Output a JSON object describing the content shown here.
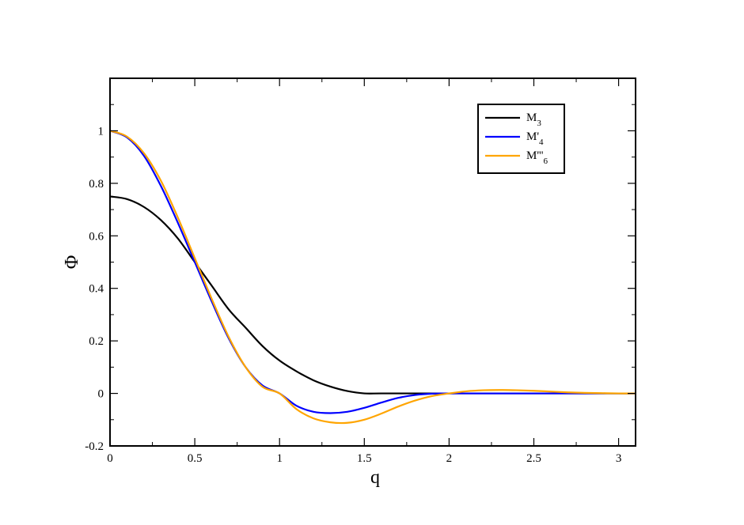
{
  "chart_data": {
    "type": "line",
    "xlabel": "q",
    "ylabel": "Φ",
    "xlim": [
      0,
      3.1
    ],
    "ylim": [
      -0.2,
      1.2
    ],
    "xticks": [
      0,
      0.5,
      1,
      1.5,
      2,
      2.5,
      3
    ],
    "xtick_labels": [
      "0",
      "0.5",
      "1",
      "1.5",
      "2",
      "2.5",
      "3"
    ],
    "yticks": [
      -0.2,
      0,
      0.2,
      0.4,
      0.6,
      0.8,
      1
    ],
    "ytick_labels": [
      "-0.2",
      "0",
      "0.2",
      "0.4",
      "0.6",
      "0.8",
      "1"
    ],
    "grid": false,
    "legend_position": "top-right",
    "series": [
      {
        "name": "M3",
        "label_main": "M",
        "label_sub": "3",
        "color": "#000000",
        "x": [
          0,
          0.1,
          0.2,
          0.3,
          0.4,
          0.5,
          0.6,
          0.7,
          0.8,
          0.9,
          1.0,
          1.1,
          1.2,
          1.3,
          1.4,
          1.5,
          1.6,
          1.8,
          2.0,
          2.2,
          2.4,
          2.6,
          2.8,
          3.0,
          3.1
        ],
        "y": [
          0.75,
          0.74,
          0.71,
          0.66,
          0.59,
          0.5,
          0.41,
          0.32,
          0.25,
          0.18,
          0.125,
          0.084,
          0.05,
          0.026,
          0.009,
          0,
          0,
          0,
          0,
          0,
          0,
          0,
          0,
          0,
          0
        ]
      },
      {
        "name": "M'4",
        "label_main": "M'",
        "label_sub": "4",
        "color": "#0000ff",
        "x": [
          0,
          0.1,
          0.2,
          0.3,
          0.4,
          0.5,
          0.6,
          0.7,
          0.8,
          0.9,
          1.0,
          1.1,
          1.2,
          1.3,
          1.4,
          1.5,
          1.6,
          1.7,
          1.8,
          1.9,
          2.0,
          2.2,
          2.4,
          2.6,
          2.8,
          3.0,
          3.1
        ],
        "y": [
          1.0,
          0.975,
          0.905,
          0.79,
          0.65,
          0.5,
          0.35,
          0.21,
          0.1,
          0.03,
          0,
          -0.047,
          -0.07,
          -0.075,
          -0.07,
          -0.055,
          -0.035,
          -0.017,
          -0.006,
          -0.001,
          0,
          0,
          0,
          0,
          0,
          0,
          0
        ]
      },
      {
        "name": "M'''6",
        "label_main": "M'''",
        "label_sub": "6",
        "color": "#ffa500",
        "x": [
          0,
          0.1,
          0.2,
          0.3,
          0.4,
          0.5,
          0.6,
          0.7,
          0.8,
          0.9,
          1.0,
          1.1,
          1.2,
          1.3,
          1.4,
          1.5,
          1.6,
          1.7,
          1.8,
          1.9,
          2.0,
          2.1,
          2.2,
          2.3,
          2.4,
          2.5,
          2.6,
          2.7,
          2.8,
          2.9,
          3.0,
          3.1
        ],
        "y": [
          1.0,
          0.978,
          0.915,
          0.81,
          0.67,
          0.515,
          0.36,
          0.215,
          0.1,
          0.025,
          0,
          -0.06,
          -0.095,
          -0.11,
          -0.112,
          -0.1,
          -0.077,
          -0.05,
          -0.027,
          -0.01,
          0,
          0.008,
          0.012,
          0.013,
          0.012,
          0.01,
          0.007,
          0.004,
          0.002,
          0.001,
          0,
          0
        ]
      }
    ]
  }
}
